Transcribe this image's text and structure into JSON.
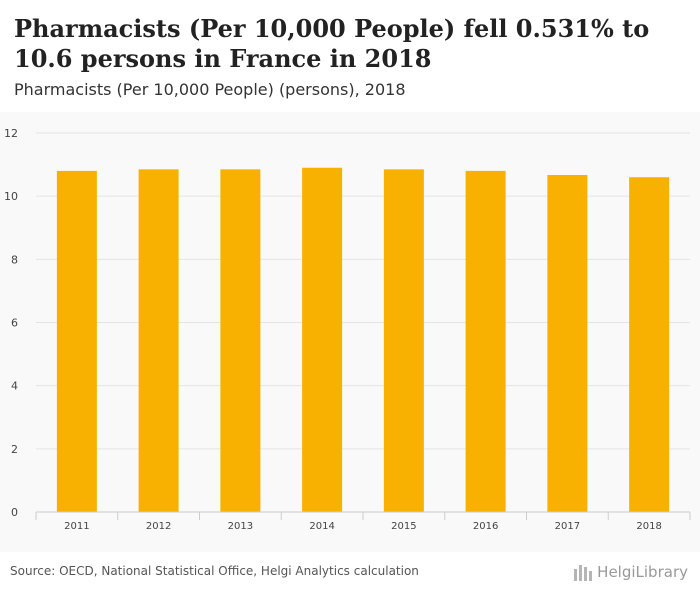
{
  "header": {
    "title": "Pharmacists (Per 10,000 People) fell 0.531% to 10.6 persons in France in 2018",
    "subtitle": "Pharmacists (Per 10,000 People) (persons), 2018"
  },
  "footer": {
    "source": "Source: OECD, National Statistical Office, Helgi Analytics calculation",
    "logo_text": "HelgiLibrary"
  },
  "colors": {
    "bar": "#F8B100",
    "grid": "#e4e4e4",
    "axis_text": "#444444"
  },
  "chart_data": {
    "type": "bar",
    "title": "Pharmacists (Per 10,000 People) (persons), 2018",
    "categories": [
      "2011",
      "2012",
      "2013",
      "2014",
      "2015",
      "2016",
      "2017",
      "2018"
    ],
    "values": [
      10.8,
      10.85,
      10.85,
      10.9,
      10.85,
      10.8,
      10.67,
      10.6
    ],
    "ylim": [
      0,
      12
    ],
    "yticks": [
      0,
      2,
      4,
      6,
      8,
      10,
      12
    ],
    "grid": true,
    "xlabel": "",
    "ylabel": ""
  }
}
